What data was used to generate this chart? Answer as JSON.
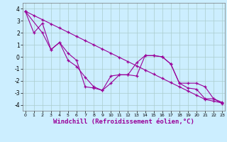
{
  "background_color": "#cceeff",
  "grid_color": "#aacccc",
  "line_color": "#990099",
  "marker": "+",
  "xlabel": "Windchill (Refroidissement éolien,°C)",
  "xlim": [
    0,
    23
  ],
  "ylim": [
    -4.5,
    4.5
  ],
  "yticks": [
    -4,
    -3,
    -2,
    -1,
    0,
    1,
    2,
    3,
    4
  ],
  "xticks": [
    0,
    1,
    2,
    3,
    4,
    5,
    6,
    7,
    8,
    9,
    10,
    11,
    12,
    13,
    14,
    15,
    16,
    17,
    18,
    19,
    20,
    21,
    22,
    23
  ],
  "line1_x": [
    0,
    1,
    2,
    3,
    4,
    5,
    6,
    7,
    8,
    9,
    10,
    11,
    12,
    13,
    14,
    15,
    16,
    17,
    18,
    19,
    20,
    21,
    22,
    23
  ],
  "line1_y": [
    3.8,
    2.0,
    2.8,
    0.6,
    1.2,
    -0.3,
    -0.8,
    -1.7,
    -2.5,
    -2.8,
    -1.6,
    -1.5,
    -1.5,
    -0.5,
    0.1,
    0.1,
    0.0,
    -0.6,
    -2.2,
    -2.6,
    -2.7,
    -3.5,
    -3.5,
    -3.8
  ],
  "line2_x": [
    0,
    2,
    3,
    4,
    5,
    6,
    7,
    8,
    9,
    10,
    11,
    12,
    13,
    14,
    15,
    16,
    17,
    18,
    19,
    20,
    21,
    22,
    23
  ],
  "line2_y": [
    3.8,
    2.0,
    0.6,
    1.2,
    0.3,
    -0.3,
    -2.5,
    -2.6,
    -2.8,
    -2.2,
    -1.5,
    -1.5,
    -1.6,
    0.1,
    0.1,
    0.0,
    -0.6,
    -2.2,
    -2.2,
    -2.2,
    -2.5,
    -3.5,
    -3.9
  ],
  "line3_x": [
    0,
    1,
    2,
    3,
    4,
    5,
    6,
    7,
    8,
    9,
    10,
    11,
    12,
    13,
    14,
    15,
    16,
    17,
    18,
    19,
    20,
    21,
    22,
    23
  ],
  "line3_y": [
    3.8,
    3.45,
    3.1,
    2.75,
    2.4,
    2.05,
    1.7,
    1.35,
    1.0,
    0.65,
    0.3,
    -0.05,
    -0.4,
    -0.75,
    -1.1,
    -1.45,
    -1.8,
    -2.15,
    -2.5,
    -2.85,
    -3.2,
    -3.55,
    -3.7,
    -3.85
  ]
}
